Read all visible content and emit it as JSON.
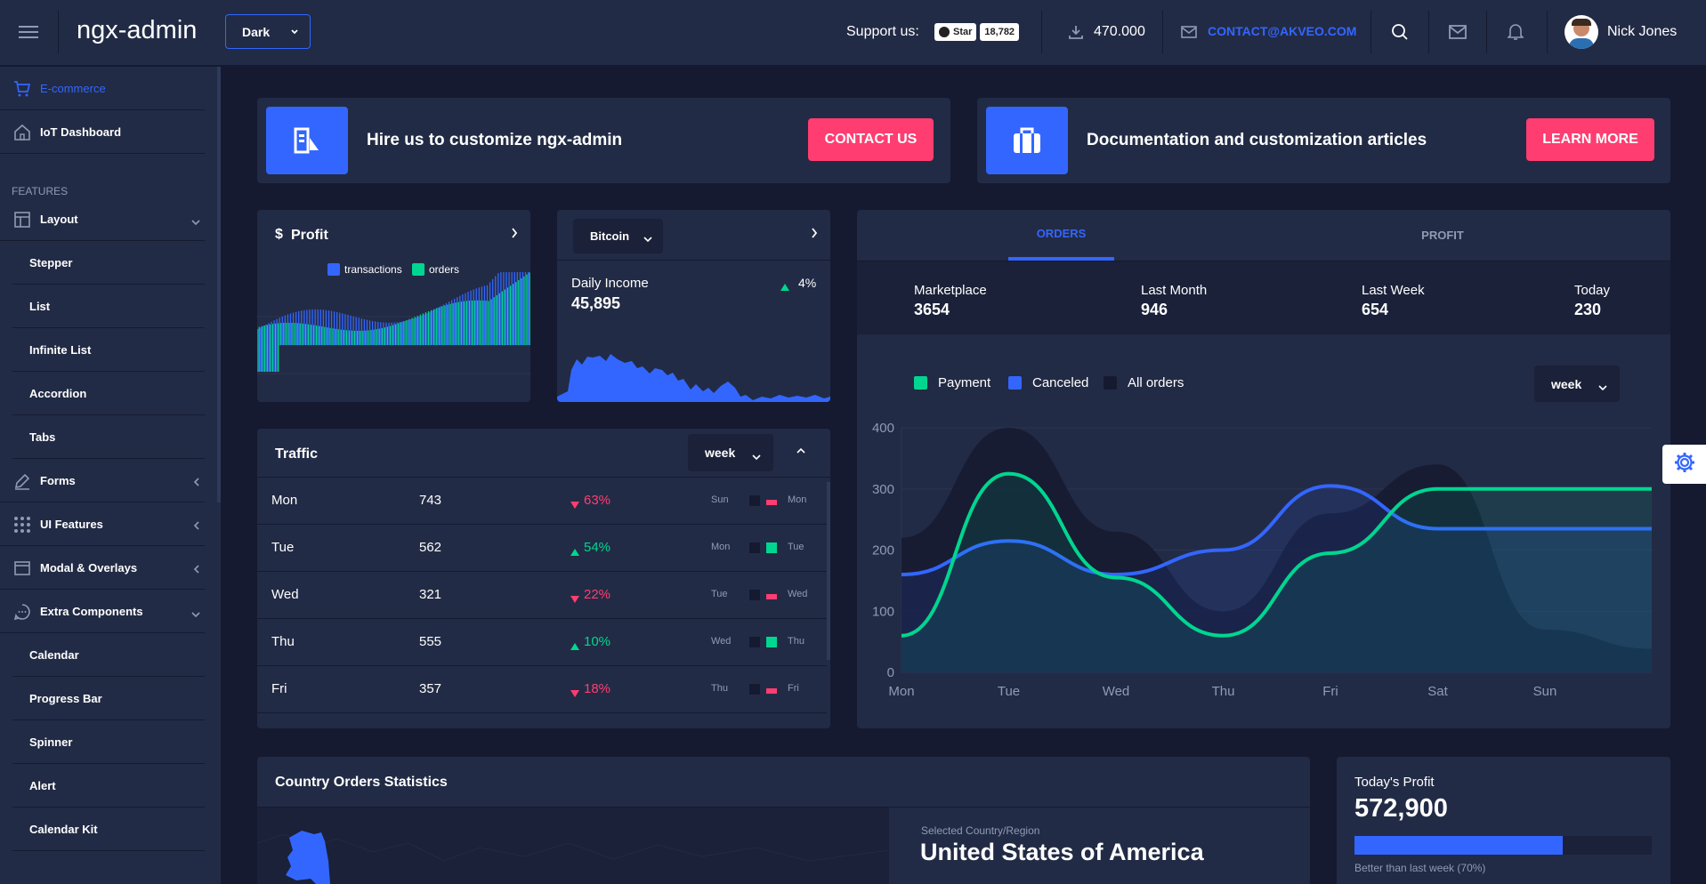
{
  "header": {
    "app_title": "ngx-admin",
    "theme_select": "Dark",
    "support_label": "Support us:",
    "github_star": "Star",
    "github_count": "18,782",
    "downloads": "470.000",
    "contact_email": "CONTACT@AKVEO.COM",
    "user_name": "Nick Jones"
  },
  "sidebar": {
    "ecommerce": "E-commerce",
    "iot": "IoT Dashboard",
    "features_heading": "FEATURES",
    "layout": "Layout",
    "layout_items": [
      "Stepper",
      "List",
      "Infinite List",
      "Accordion",
      "Tabs"
    ],
    "forms": "Forms",
    "ui_features": "UI Features",
    "modal": "Modal & Overlays",
    "extra": "Extra Components",
    "extra_items": [
      "Calendar",
      "Progress Bar",
      "Spinner",
      "Alert",
      "Calendar Kit"
    ]
  },
  "banners": {
    "hire_text": "Hire us to customize ngx-admin",
    "contact_button": "CONTACT US",
    "docs_text": "Documentation and customization articles",
    "learn_button": "LEARN MORE"
  },
  "profit_card": {
    "title": "Profit",
    "legend_transactions": "transactions",
    "legend_orders": "orders"
  },
  "bitcoin_card": {
    "currency_select": "Bitcoin",
    "daily_label": "Daily Income",
    "daily_value": "45,895",
    "delta": "4%"
  },
  "traffic": {
    "title": "Traffic",
    "period_select": "week",
    "rows": [
      {
        "day": "Mon",
        "value": "743",
        "delta": "63%",
        "dir": "down",
        "prev": "Sun",
        "cur": "Mon"
      },
      {
        "day": "Tue",
        "value": "562",
        "delta": "54%",
        "dir": "up",
        "prev": "Mon",
        "cur": "Tue"
      },
      {
        "day": "Wed",
        "value": "321",
        "delta": "22%",
        "dir": "down",
        "prev": "Tue",
        "cur": "Wed"
      },
      {
        "day": "Thu",
        "value": "555",
        "delta": "10%",
        "dir": "up",
        "prev": "Wed",
        "cur": "Thu"
      },
      {
        "day": "Fri",
        "value": "357",
        "delta": "18%",
        "dir": "down",
        "prev": "Thu",
        "cur": "Fri"
      }
    ]
  },
  "orders": {
    "tab_orders": "ORDERS",
    "tab_profit": "PROFIT",
    "summary": [
      {
        "label": "Marketplace",
        "value": "3654"
      },
      {
        "label": "Last Month",
        "value": "946"
      },
      {
        "label": "Last Week",
        "value": "654"
      },
      {
        "label": "Today",
        "value": "230"
      }
    ],
    "legend": [
      "Payment",
      "Canceled",
      "All orders"
    ],
    "period_select": "week"
  },
  "chart_data": {
    "type": "line",
    "categories": [
      "Mon",
      "Tue",
      "Wed",
      "Thu",
      "Fri",
      "Sat",
      "Sun"
    ],
    "ylim": [
      0,
      400
    ],
    "yticks": [
      0,
      100,
      200,
      300,
      400
    ],
    "series": [
      {
        "name": "Payment",
        "color": "#00d68f",
        "values": [
          60,
          325,
          155,
          60,
          195,
          300,
          300
        ]
      },
      {
        "name": "Canceled",
        "color": "#3366ff",
        "values": [
          160,
          215,
          160,
          200,
          305,
          235,
          235
        ]
      },
      {
        "name": "All orders",
        "color": "#151a30",
        "values": [
          220,
          400,
          230,
          100,
          260,
          340,
          70
        ]
      }
    ]
  },
  "country": {
    "title": "Country Orders Statistics",
    "selected_label": "Selected Country/Region",
    "selected_value": "United States of America"
  },
  "today_profit": {
    "title": "Today's Profit",
    "value": "572,900",
    "progress": 0.7,
    "caption": "Better than last week (70%)"
  },
  "colors": {
    "accent": "#3366ff",
    "success": "#00d68f",
    "danger": "#ff3d71",
    "bg": "#151a30",
    "card": "#222b45"
  }
}
